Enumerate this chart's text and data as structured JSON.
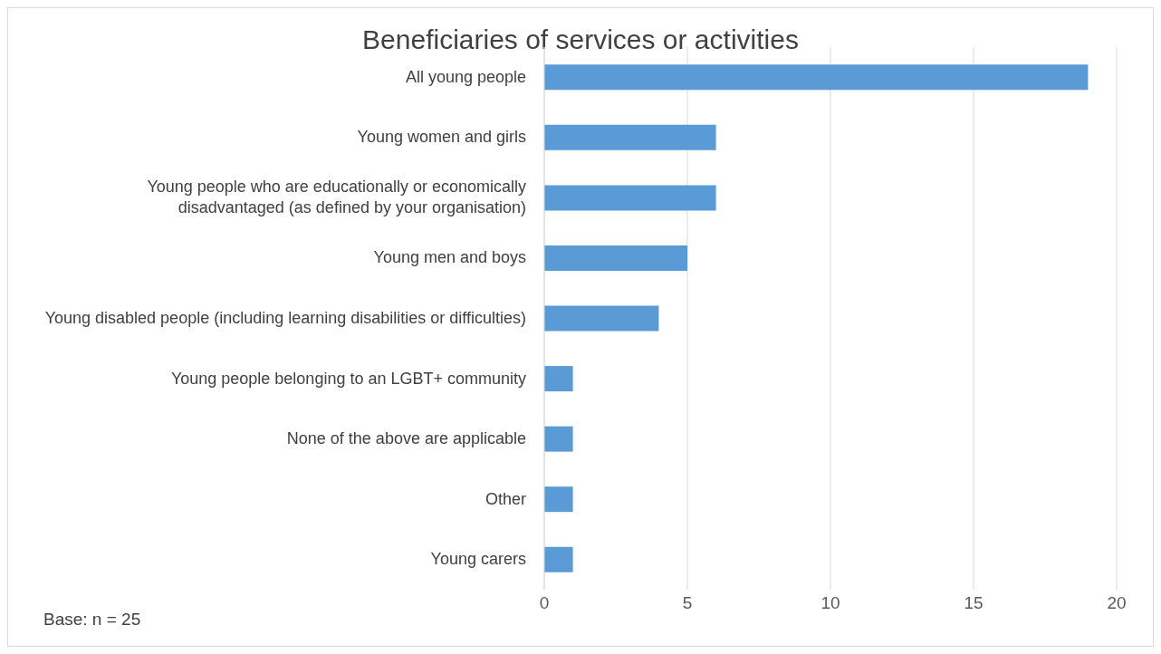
{
  "chart_data": {
    "type": "bar",
    "orientation": "horizontal",
    "title": "Beneficiaries of services or activities",
    "categories": [
      "All young people",
      "Young women and girls",
      "Young people who are educationally or economically disadvantaged (as defined by your organisation)",
      "Young men and boys",
      "Young disabled people (including learning disabilities or difficulties)",
      "Young people belonging to an LGBT+ community",
      "None of the above are applicable",
      "Other",
      "Young carers"
    ],
    "values": [
      19,
      6,
      6,
      5,
      4,
      1,
      1,
      1,
      1
    ],
    "color": "#5b9bd5",
    "xlim": [
      0,
      20
    ],
    "xticks": [
      0,
      5,
      10,
      15,
      20
    ],
    "grid": "x",
    "annotations": [
      "Base: n = 25"
    ]
  }
}
